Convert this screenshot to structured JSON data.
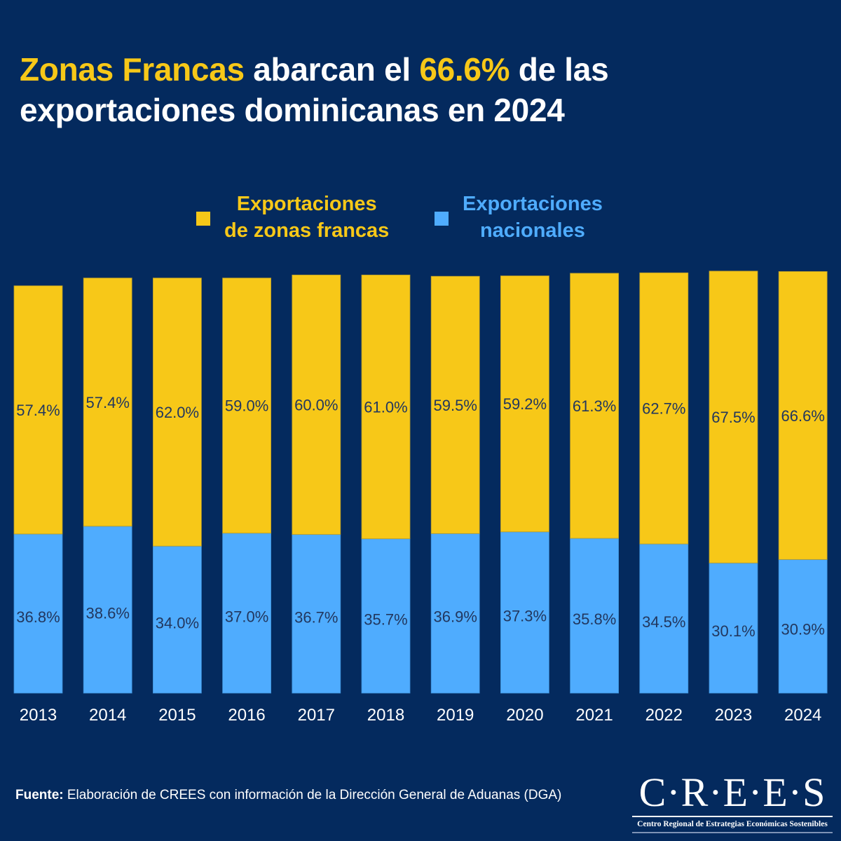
{
  "title": {
    "highlight1": "Zonas Francas",
    "text1": " abarcan el ",
    "highlight2": "66.6%",
    "text2": " de las",
    "line2": "exportaciones dominicanas en 2024"
  },
  "legend": {
    "zonas_francas": {
      "line1": "Exportaciones",
      "line2": "de zonas francas",
      "color": "#f7c818"
    },
    "nacionales": {
      "line1": "Exportaciones",
      "line2": "nacionales",
      "color": "#4facfe"
    }
  },
  "footer": {
    "source_label": "Fuente:",
    "source_text": " Elaboración de CREES con información de la Dirección General de Aduanas (DGA)"
  },
  "logo": {
    "mark": "C·R·E·E·S",
    "subtitle": "Centro Regional de Estrategias Económicas Sostenibles"
  },
  "chart_data": {
    "type": "bar",
    "stacked": true,
    "title": "Zonas Francas abarcan el 66.6% de las exportaciones dominicanas en 2024",
    "xlabel": "",
    "ylabel": "",
    "grid": false,
    "legend_position": "top-center",
    "categories": [
      "2013",
      "2014",
      "2015",
      "2016",
      "2017",
      "2018",
      "2019",
      "2020",
      "2021",
      "2022",
      "2023",
      "2024"
    ],
    "series": [
      {
        "name": "Exportaciones nacionales",
        "color": "#4facfe",
        "values": [
          36.8,
          38.6,
          34.0,
          37.0,
          36.7,
          35.7,
          36.9,
          37.3,
          35.8,
          34.5,
          30.1,
          30.9
        ],
        "labels": [
          "36.8%",
          "38.6%",
          "34.0%",
          "37.0%",
          "36.7%",
          "35.7%",
          "36.9%",
          "37.3%",
          "35.8%",
          "34.5%",
          "30.1%",
          "30.9%"
        ]
      },
      {
        "name": "Exportaciones de zonas francas",
        "color": "#f7c818",
        "values": [
          57.4,
          57.4,
          62.0,
          59.0,
          60.0,
          61.0,
          59.5,
          59.2,
          61.3,
          62.7,
          67.5,
          66.6
        ],
        "labels": [
          "57.4%",
          "57.4%",
          "62.0%",
          "59.0%",
          "60.0%",
          "61.0%",
          "59.5%",
          "59.2%",
          "61.3%",
          "62.7%",
          "67.5%",
          "66.6%"
        ]
      }
    ],
    "ylim": [
      0,
      100
    ],
    "unit": "%"
  }
}
